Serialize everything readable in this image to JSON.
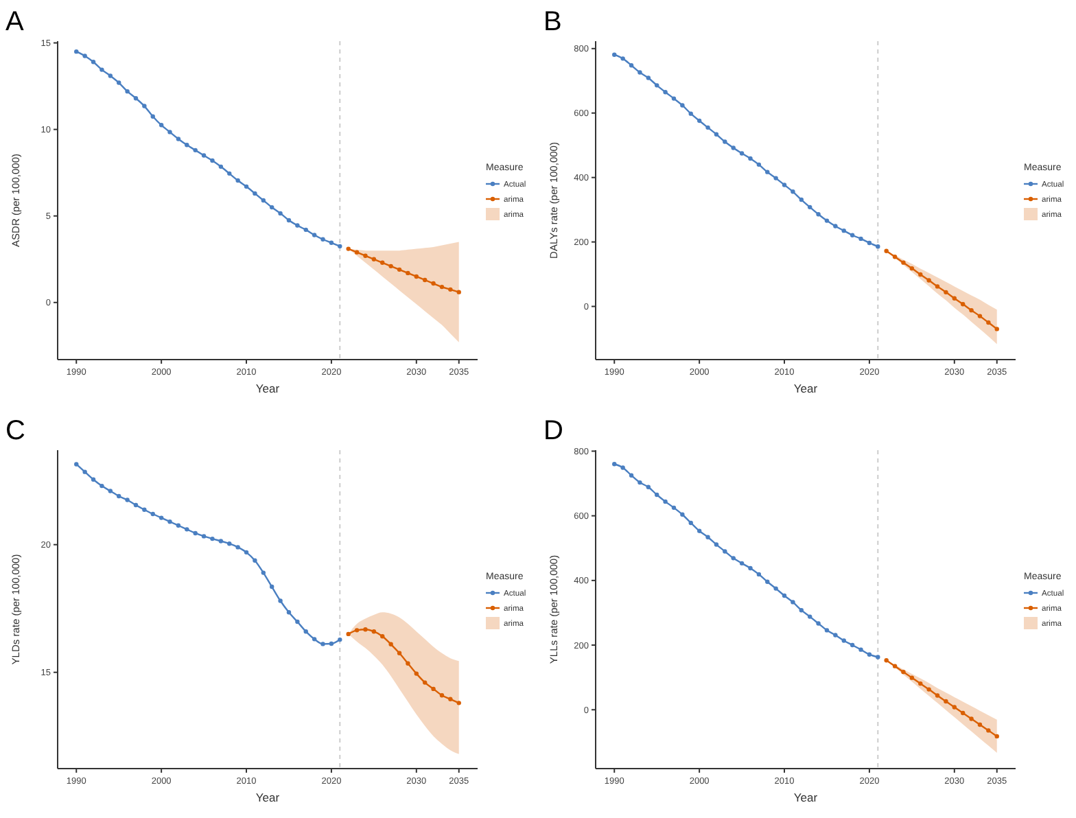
{
  "chart_data": [
    {
      "type": "line",
      "title": "A",
      "xlabel": "Year",
      "ylabel": "ASDR (per 100,000)",
      "legend_title": "Measure",
      "legend": "right",
      "marker": "circle",
      "grid": false,
      "xlim": [
        1987.8,
        2037.2
      ],
      "xticks": [
        1990,
        2000,
        2010,
        2020,
        2030,
        2035
      ],
      "ylim": [
        -3.3,
        15.1
      ],
      "yticks": [
        0,
        5,
        10,
        15
      ],
      "ref_lines": [
        {
          "axis": "x",
          "value": 2021,
          "color": "#cccccc",
          "line_style": "dashed"
        }
      ],
      "series": [
        {
          "name": "Actual",
          "color": "#4a7fc1",
          "x": [
            1990,
            1991,
            1992,
            1993,
            1994,
            1995,
            1996,
            1997,
            1998,
            1999,
            2000,
            2001,
            2002,
            2003,
            2004,
            2005,
            2006,
            2007,
            2008,
            2009,
            2010,
            2011,
            2012,
            2013,
            2014,
            2015,
            2016,
            2017,
            2018,
            2019,
            2020,
            2021
          ],
          "values": [
            14.5,
            14.25,
            13.9,
            13.45,
            13.1,
            12.7,
            12.2,
            11.8,
            11.35,
            10.75,
            10.25,
            9.85,
            9.45,
            9.1,
            8.8,
            8.5,
            8.2,
            7.85,
            7.45,
            7.05,
            6.7,
            6.3,
            5.9,
            5.5,
            5.15,
            4.75,
            4.45,
            4.2,
            3.9,
            3.65,
            3.45,
            3.25
          ]
        },
        {
          "name": "arima",
          "color": "#d95f02",
          "x": [
            2022,
            2023,
            2024,
            2025,
            2026,
            2027,
            2028,
            2029,
            2030,
            2031,
            2032,
            2033,
            2034,
            2035
          ],
          "values": [
            3.1,
            2.9,
            2.7,
            2.5,
            2.3,
            2.1,
            1.9,
            1.7,
            1.5,
            1.3,
            1.1,
            0.9,
            0.75,
            0.6
          ],
          "lower": [
            3.1,
            2.7,
            2.3,
            1.9,
            1.5,
            1.1,
            0.7,
            0.3,
            -0.1,
            -0.5,
            -0.9,
            -1.3,
            -1.8,
            -2.3
          ],
          "upper": [
            3.1,
            3.05,
            3.0,
            3.0,
            3.0,
            3.0,
            3.0,
            3.05,
            3.1,
            3.15,
            3.2,
            3.3,
            3.4,
            3.5
          ]
        }
      ]
    },
    {
      "type": "line",
      "title": "B",
      "xlabel": "Year",
      "ylabel": "DALYs rate (per 100,000)",
      "legend_title": "Measure",
      "legend": "right",
      "marker": "circle",
      "grid": false,
      "xlim": [
        1987.8,
        2037.2
      ],
      "xticks": [
        1990,
        2000,
        2010,
        2020,
        2030,
        2035
      ],
      "ylim": [
        -165,
        823
      ],
      "yticks": [
        0,
        200,
        400,
        600,
        800
      ],
      "ref_lines": [
        {
          "axis": "x",
          "value": 2021,
          "color": "#cccccc",
          "line_style": "dashed"
        }
      ],
      "series": [
        {
          "name": "Actual",
          "color": "#4a7fc1",
          "x": [
            1990,
            1991,
            1992,
            1993,
            1994,
            1995,
            1996,
            1997,
            1998,
            1999,
            2000,
            2001,
            2002,
            2003,
            2004,
            2005,
            2006,
            2007,
            2008,
            2009,
            2010,
            2011,
            2012,
            2013,
            2014,
            2015,
            2016,
            2017,
            2018,
            2019,
            2020,
            2021
          ],
          "values": [
            781,
            769,
            748,
            726,
            709,
            686,
            665,
            645,
            624,
            598,
            576,
            555,
            534,
            511,
            492,
            475,
            459,
            440,
            417,
            398,
            377,
            356,
            331,
            308,
            286,
            266,
            249,
            235,
            221,
            210,
            197,
            186
          ]
        },
        {
          "name": "arima",
          "color": "#d95f02",
          "x": [
            2022,
            2023,
            2024,
            2025,
            2026,
            2027,
            2028,
            2029,
            2030,
            2031,
            2032,
            2033,
            2034,
            2035
          ],
          "values": [
            172,
            154,
            136,
            118,
            99,
            81,
            62,
            44,
            25,
            7,
            -12,
            -30,
            -50,
            -70
          ],
          "lower": [
            172,
            150,
            129,
            107,
            85,
            63,
            40,
            19,
            -4,
            -25,
            -48,
            -70,
            -93,
            -117
          ],
          "upper": [
            172,
            159,
            145,
            132,
            117,
            104,
            90,
            76,
            62,
            48,
            34,
            21,
            5,
            -10
          ]
        }
      ]
    },
    {
      "type": "line",
      "title": "C",
      "xlabel": "Year",
      "ylabel": "YLDs rate (per 100,000)",
      "legend_title": "Measure",
      "legend": "right",
      "marker": "circle",
      "grid": false,
      "xlim": [
        1987.8,
        2037.2
      ],
      "xticks": [
        1990,
        2000,
        2010,
        2020,
        2030,
        2035
      ],
      "ylim": [
        11.23,
        23.7
      ],
      "yticks": [
        15,
        20
      ],
      "ref_lines": [
        {
          "axis": "x",
          "value": 2021,
          "color": "#cccccc",
          "line_style": "dashed"
        }
      ],
      "series": [
        {
          "name": "Actual",
          "color": "#4a7fc1",
          "x": [
            1990,
            1991,
            1992,
            1993,
            1994,
            1995,
            1996,
            1997,
            1998,
            1999,
            2000,
            2001,
            2002,
            2003,
            2004,
            2005,
            2006,
            2007,
            2008,
            2009,
            2010,
            2011,
            2012,
            2013,
            2014,
            2015,
            2016,
            2017,
            2018,
            2019,
            2020,
            2021
          ],
          "values": [
            23.15,
            22.85,
            22.55,
            22.3,
            22.1,
            21.9,
            21.75,
            21.55,
            21.37,
            21.2,
            21.05,
            20.9,
            20.75,
            20.6,
            20.45,
            20.33,
            20.23,
            20.14,
            20.04,
            19.9,
            19.7,
            19.38,
            18.9,
            18.35,
            17.8,
            17.35,
            16.98,
            16.6,
            16.3,
            16.11,
            16.12,
            16.28
          ]
        },
        {
          "name": "arima",
          "color": "#d95f02",
          "x": [
            2022,
            2023,
            2024,
            2025,
            2026,
            2027,
            2028,
            2029,
            2030,
            2031,
            2032,
            2033,
            2034,
            2035
          ],
          "values": [
            16.5,
            16.65,
            16.68,
            16.6,
            16.41,
            16.1,
            15.75,
            15.35,
            14.95,
            14.6,
            14.35,
            14.1,
            13.95,
            13.8
          ],
          "lower": [
            16.5,
            16.2,
            15.95,
            15.65,
            15.3,
            14.85,
            14.35,
            13.85,
            13.35,
            12.9,
            12.5,
            12.2,
            11.95,
            11.8
          ],
          "upper": [
            16.5,
            16.9,
            17.1,
            17.25,
            17.35,
            17.3,
            17.15,
            16.9,
            16.6,
            16.3,
            16.0,
            15.75,
            15.55,
            15.44
          ]
        }
      ]
    },
    {
      "type": "line",
      "title": "D",
      "xlabel": "Year",
      "ylabel": "YLLs rate (per 100,000)",
      "legend_title": "Measure",
      "legend": "right",
      "marker": "circle",
      "grid": false,
      "xlim": [
        1987.8,
        2037.2
      ],
      "xticks": [
        1990,
        2000,
        2010,
        2020,
        2030,
        2035
      ],
      "ylim": [
        -182,
        803
      ],
      "yticks": [
        0,
        200,
        400,
        600,
        800
      ],
      "ref_lines": [
        {
          "axis": "x",
          "value": 2021,
          "color": "#cccccc",
          "line_style": "dashed"
        }
      ],
      "series": [
        {
          "name": "Actual",
          "color": "#4a7fc1",
          "x": [
            1990,
            1991,
            1992,
            1993,
            1994,
            1995,
            1996,
            1997,
            1998,
            1999,
            2000,
            2001,
            2002,
            2003,
            2004,
            2005,
            2006,
            2007,
            2008,
            2009,
            2010,
            2011,
            2012,
            2013,
            2014,
            2015,
            2016,
            2017,
            2018,
            2019,
            2020,
            2021
          ],
          "values": [
            760,
            749,
            725,
            703,
            689,
            665,
            644,
            625,
            604,
            578,
            553,
            534,
            511,
            490,
            469,
            453,
            438,
            419,
            396,
            375,
            353,
            333,
            308,
            288,
            267,
            246,
            231,
            214,
            200,
            186,
            171,
            163
          ]
        },
        {
          "name": "arima",
          "color": "#d95f02",
          "x": [
            2022,
            2023,
            2024,
            2025,
            2026,
            2027,
            2028,
            2029,
            2030,
            2031,
            2032,
            2033,
            2034,
            2035
          ],
          "values": [
            153,
            135,
            117,
            99,
            81,
            63,
            44,
            26,
            8,
            -10,
            -28,
            -46,
            -64,
            -82
          ],
          "lower": [
            153,
            131,
            109,
            87,
            65,
            43,
            21,
            -1,
            -23,
            -45,
            -67,
            -89,
            -111,
            -133
          ],
          "upper": [
            153,
            139,
            125,
            111,
            97,
            83,
            67,
            53,
            39,
            25,
            11,
            -3,
            -17,
            -31
          ]
        }
      ]
    }
  ]
}
